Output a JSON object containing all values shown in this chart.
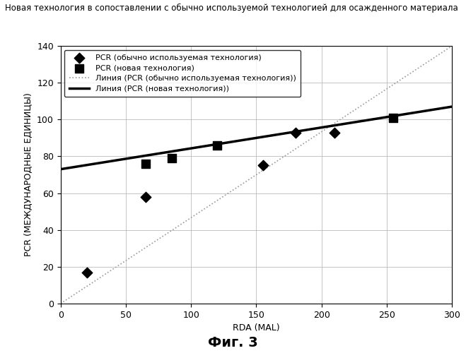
{
  "title": "Новая технология в сопоставлении с обычно используемой технологией для осажденного материала",
  "xlabel": "RDA (MAL)",
  "ylabel": "PCR (МЕЖДУНАРОДНЫЕ ЕДИНИЦЫ)",
  "caption": "Фиг. 3",
  "xlim": [
    0,
    300
  ],
  "ylim": [
    0,
    140
  ],
  "xticks": [
    0,
    50,
    100,
    150,
    200,
    250,
    300
  ],
  "yticks": [
    0,
    20,
    40,
    60,
    80,
    100,
    120,
    140
  ],
  "scatter1_x": [
    20,
    65,
    155,
    180,
    210
  ],
  "scatter1_y": [
    17,
    58,
    75,
    93,
    93
  ],
  "scatter1_label": "PCR (обычно используемая технология)",
  "scatter1_marker": "D",
  "scatter2_x": [
    65,
    85,
    120,
    255
  ],
  "scatter2_y": [
    76,
    79,
    86,
    101
  ],
  "scatter2_label": "PCR (новая технология)",
  "scatter2_marker": "s",
  "line1_x": [
    0,
    300
  ],
  "line1_y": [
    0,
    140
  ],
  "line1_label": "Линия (PCR (обычно используемая технология))",
  "line1_color": "#999999",
  "line2_x": [
    0,
    300
  ],
  "line2_y": [
    73,
    107
  ],
  "line2_label": "Линия (PCR (новая технология))",
  "line2_color": "#000000",
  "line2_linewidth": 2.5,
  "marker_color": "#000000",
  "grid_color": "#bbbbbb",
  "background_color": "#ffffff",
  "title_fontsize": 8.5,
  "axis_label_fontsize": 9,
  "tick_fontsize": 9,
  "legend_fontsize": 8,
  "caption_fontsize": 14
}
